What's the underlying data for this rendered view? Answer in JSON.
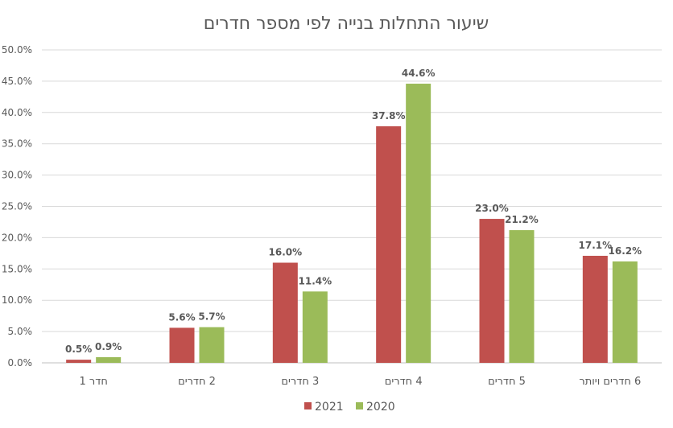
{
  "chart_data": {
    "type": "bar",
    "title": "שיעור התחלות בנייה לפי מספר חדרים",
    "categories": [
      "חדר 1",
      "2 חדרים",
      "3 חדרים",
      "4 חדרים",
      "5 חדרים",
      "6 חדרים ויותר"
    ],
    "series": [
      {
        "name": "2021",
        "color": "#c0504d",
        "values": [
          0.5,
          5.6,
          16.0,
          37.8,
          23.0,
          17.1
        ],
        "labels": [
          "0.5%",
          "5.6%",
          "16.0%",
          "37.8%",
          "23.0%",
          "17.1%"
        ]
      },
      {
        "name": "2020",
        "color": "#9bbb59",
        "values": [
          0.9,
          5.7,
          11.4,
          44.6,
          21.2,
          16.2
        ],
        "labels": [
          "0.9%",
          "5.7%",
          "11.4%",
          "44.6%",
          "21.2%",
          "16.2%"
        ]
      }
    ],
    "ylim": [
      0,
      50
    ],
    "yticks": [
      "0.0%",
      "5.0%",
      "10.0%",
      "15.0%",
      "20.0%",
      "25.0%",
      "30.0%",
      "35.0%",
      "40.0%",
      "45.0%",
      "50.0%"
    ],
    "ytick_values": [
      0,
      5,
      10,
      15,
      20,
      25,
      30,
      35,
      40,
      45,
      50
    ],
    "grid": true,
    "legend": "bottom"
  }
}
